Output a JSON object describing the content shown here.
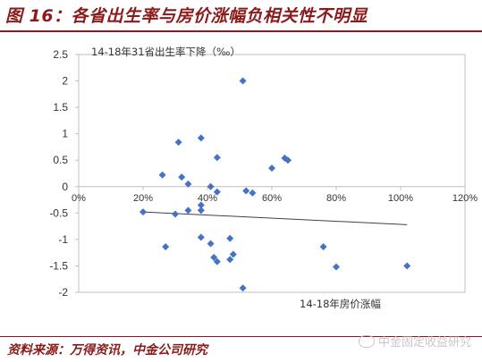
{
  "figure": {
    "title": "图 16：各省出生率与房价涨幅负相关性不明显",
    "source": "资料来源：万得资讯，中金公司研究",
    "watermark": "中金固定收益研究"
  },
  "colors": {
    "accent": "#8b1a1a",
    "marker": "#4472c4",
    "trendline": "#404040",
    "axis": "#bfbfbf"
  },
  "chart_data": {
    "type": "scatter",
    "ylabel": "14-18年31省出生率下降（‰）",
    "xlabel": "14-18年房价涨幅",
    "xlim": [
      0,
      1.2
    ],
    "ylim": [
      -2,
      2.5
    ],
    "x_ticks": [
      "0%",
      "20%",
      "40%",
      "60%",
      "80%",
      "100%",
      "120%"
    ],
    "y_ticks": [
      "-2",
      "-1.5",
      "-1",
      "-0.5",
      "0",
      "0.5",
      "1",
      "1.5",
      "2",
      "2.5"
    ],
    "grid": false,
    "trendline": {
      "x": [
        0.2,
        1.02
      ],
      "y": [
        -0.48,
        -0.72
      ]
    },
    "points": [
      {
        "x": 0.51,
        "y": 2.0
      },
      {
        "x": 0.38,
        "y": 0.92
      },
      {
        "x": 0.31,
        "y": 0.84
      },
      {
        "x": 0.64,
        "y": 0.54
      },
      {
        "x": 0.65,
        "y": 0.5
      },
      {
        "x": 0.43,
        "y": 0.55
      },
      {
        "x": 0.6,
        "y": 0.35
      },
      {
        "x": 0.26,
        "y": 0.22
      },
      {
        "x": 0.32,
        "y": 0.18
      },
      {
        "x": 0.34,
        "y": 0.05
      },
      {
        "x": 0.41,
        "y": 0.0
      },
      {
        "x": 0.52,
        "y": -0.08
      },
      {
        "x": 0.54,
        "y": -0.12
      },
      {
        "x": 0.43,
        "y": -0.1
      },
      {
        "x": 0.38,
        "y": -0.35
      },
      {
        "x": 0.38,
        "y": -0.45
      },
      {
        "x": 0.2,
        "y": -0.48
      },
      {
        "x": 0.3,
        "y": -0.52
      },
      {
        "x": 0.34,
        "y": -0.45
      },
      {
        "x": 0.38,
        "y": -0.96
      },
      {
        "x": 0.41,
        "y": -1.08
      },
      {
        "x": 0.47,
        "y": -0.98
      },
      {
        "x": 0.27,
        "y": -1.14
      },
      {
        "x": 0.42,
        "y": -1.34
      },
      {
        "x": 0.43,
        "y": -1.42
      },
      {
        "x": 0.47,
        "y": -1.38
      },
      {
        "x": 0.48,
        "y": -1.28
      },
      {
        "x": 0.76,
        "y": -1.14
      },
      {
        "x": 0.8,
        "y": -1.52
      },
      {
        "x": 1.02,
        "y": -1.5
      },
      {
        "x": 0.51,
        "y": -1.92
      }
    ]
  }
}
